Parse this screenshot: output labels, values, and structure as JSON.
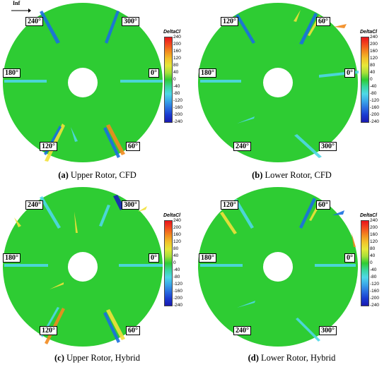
{
  "inflow_label": "Inf",
  "legend": {
    "title": "DeltaCl",
    "ticks": [
      "240",
      "200",
      "160",
      "120",
      "80",
      "40",
      "0",
      "-40",
      "-80",
      "-120",
      "-160",
      "-200",
      "-240"
    ]
  },
  "panels": [
    {
      "id": "a",
      "caption_letter": "(a)",
      "caption_text": " Upper Rotor, CFD",
      "angles": {
        "top_left": "240°",
        "top_right": "300°",
        "left": "180°",
        "right": "0°",
        "bottom_left": "120°",
        "bottom_right": "60°"
      }
    },
    {
      "id": "b",
      "caption_letter": "(b)",
      "caption_text": " Lower Rotor, CFD",
      "angles": {
        "top_left": "120°",
        "top_right": "60°",
        "left": "180°",
        "right": "0°",
        "bottom_left": "240°",
        "bottom_right": "300°"
      }
    },
    {
      "id": "c",
      "caption_letter": "(c)",
      "caption_text": " Upper Rotor, Hybrid",
      "angles": {
        "top_left": "240°",
        "top_right": "300°",
        "left": "180°",
        "right": "0°",
        "bottom_left": "120°",
        "bottom_right": "60°"
      }
    },
    {
      "id": "d",
      "caption_letter": "(d)",
      "caption_text": " Lower Rotor, Hybrid",
      "angles": {
        "top_left": "120°",
        "top_right": "60°",
        "left": "180°",
        "right": "0°",
        "bottom_left": "240°",
        "bottom_right": "300°"
      }
    }
  ],
  "colors": {
    "disk_green": "#2ecc33",
    "blue_streak": "#1a6fe0",
    "cyan_streak": "#4fd8e8",
    "yellow_streak": "#f2e23a",
    "orange_streak": "#f28a1e",
    "dark_blue": "#1a22b8",
    "scale": [
      "#e8141c",
      "#f24a1e",
      "#f28a1e",
      "#f2c22a",
      "#e6e83a",
      "#a8e03a",
      "#2ecc33",
      "#3ad6a0",
      "#4fd8e8",
      "#3aa8e8",
      "#2a6fe0",
      "#1a3ad0",
      "#1a1ab0"
    ]
  }
}
